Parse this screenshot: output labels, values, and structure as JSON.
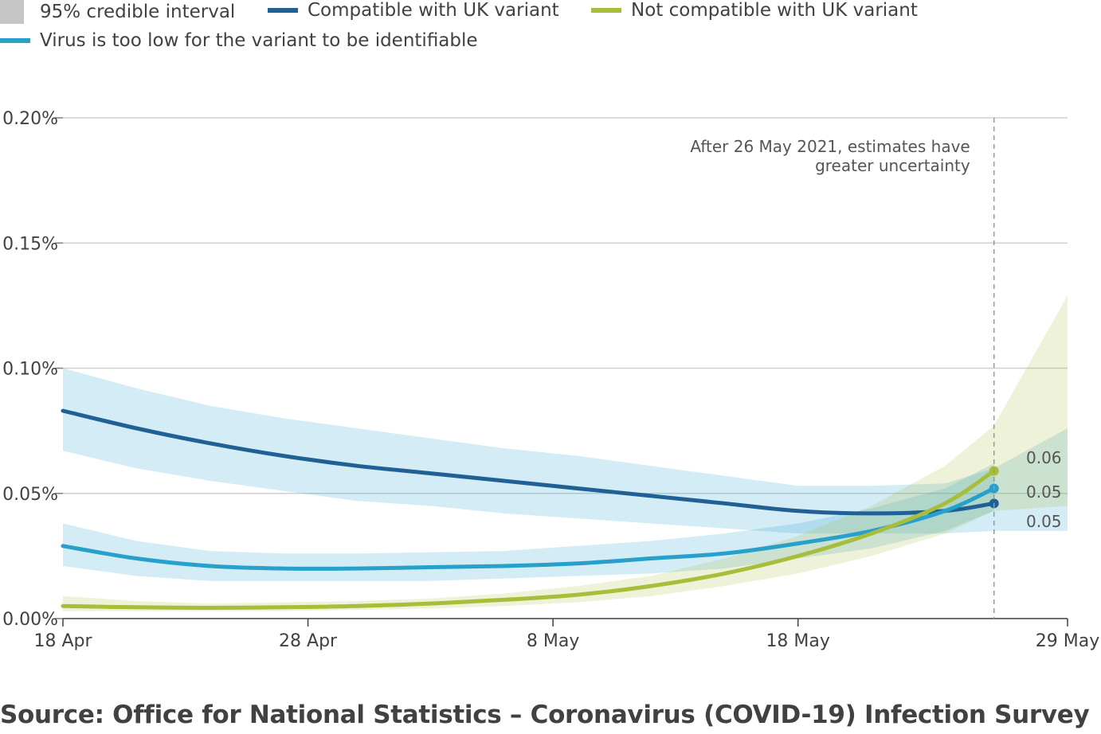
{
  "legend": [
    {
      "label": "95% credible interval",
      "kind": "box",
      "color": "#c6c6c6"
    },
    {
      "label": "Compatible with UK variant",
      "kind": "line",
      "color": "#206095"
    },
    {
      "label": "Not compatible with UK variant",
      "kind": "line",
      "color": "#a8bd3a"
    },
    {
      "label": "Virus is too low for the variant to be identifiable",
      "kind": "line",
      "color": "#27a0cc"
    }
  ],
  "source": "Source: Office for National Statistics – Coronavirus (COVID-19) Infection Survey",
  "chart_data": {
    "type": "line",
    "x_start": "2021-04-18",
    "x_end": "2021-05-29",
    "x_ticks": [
      {
        "date": "2021-04-18",
        "label": "18 Apr"
      },
      {
        "date": "2021-04-28",
        "label": "28 Apr"
      },
      {
        "date": "2021-05-08",
        "label": "8 May"
      },
      {
        "date": "2021-05-18",
        "label": "18 May"
      },
      {
        "date": "2021-05-29",
        "label": "29 May"
      }
    ],
    "ylim": [
      0,
      0.2
    ],
    "y_ticks": [
      {
        "value": 0.0,
        "label": "0.00%"
      },
      {
        "value": 0.05,
        "label": "0.05%"
      },
      {
        "value": 0.1,
        "label": "0.10%"
      },
      {
        "value": 0.15,
        "label": "0.15%"
      },
      {
        "value": 0.2,
        "label": "0.20%"
      }
    ],
    "grid": true,
    "annotation": {
      "date": "2021-05-26",
      "text_lines": [
        "After 26 May 2021, estimates have",
        "greater uncertainty"
      ]
    },
    "series": [
      {
        "name": "Compatible with UK variant",
        "color": "#206095",
        "band_color": "#27a0cc",
        "end_label": "0.05",
        "x": [
          "2021-04-18",
          "2021-04-21",
          "2021-04-24",
          "2021-04-27",
          "2021-04-30",
          "2021-05-03",
          "2021-05-06",
          "2021-05-09",
          "2021-05-12",
          "2021-05-15",
          "2021-05-18",
          "2021-05-21",
          "2021-05-24",
          "2021-05-26"
        ],
        "y": [
          0.083,
          0.076,
          0.07,
          0.065,
          0.061,
          0.058,
          0.055,
          0.052,
          0.049,
          0.046,
          0.043,
          0.042,
          0.043,
          0.046
        ],
        "lower": [
          0.067,
          0.06,
          0.055,
          0.051,
          0.047,
          0.045,
          0.042,
          0.04,
          0.038,
          0.036,
          0.034,
          0.034,
          0.034,
          0.035
        ],
        "upper": [
          0.1,
          0.092,
          0.085,
          0.08,
          0.076,
          0.072,
          0.068,
          0.065,
          0.061,
          0.057,
          0.053,
          0.053,
          0.054,
          0.06
        ]
      },
      {
        "name": "Virus is too low for the variant to be identifiable",
        "color": "#27a0cc",
        "band_color": "#27a0cc",
        "end_label": "0.05",
        "x": [
          "2021-04-18",
          "2021-04-21",
          "2021-04-24",
          "2021-04-27",
          "2021-04-30",
          "2021-05-03",
          "2021-05-06",
          "2021-05-09",
          "2021-05-12",
          "2021-05-15",
          "2021-05-18",
          "2021-05-21",
          "2021-05-24",
          "2021-05-26"
        ],
        "y": [
          0.029,
          0.024,
          0.021,
          0.02,
          0.02,
          0.0205,
          0.021,
          0.022,
          0.024,
          0.026,
          0.03,
          0.035,
          0.043,
          0.052
        ],
        "lower": [
          0.021,
          0.017,
          0.015,
          0.015,
          0.015,
          0.015,
          0.016,
          0.017,
          0.018,
          0.02,
          0.024,
          0.028,
          0.035,
          0.043
        ],
        "upper": [
          0.038,
          0.031,
          0.027,
          0.026,
          0.026,
          0.0265,
          0.027,
          0.029,
          0.031,
          0.034,
          0.038,
          0.044,
          0.052,
          0.062
        ]
      },
      {
        "name": "Not compatible with UK variant",
        "color": "#a8bd3a",
        "band_color": "#a8bd3a",
        "end_label": "0.06",
        "x": [
          "2021-04-18",
          "2021-04-21",
          "2021-04-24",
          "2021-04-27",
          "2021-04-30",
          "2021-05-03",
          "2021-05-06",
          "2021-05-09",
          "2021-05-12",
          "2021-05-15",
          "2021-05-18",
          "2021-05-21",
          "2021-05-24",
          "2021-05-26"
        ],
        "y": [
          0.005,
          0.0045,
          0.0043,
          0.0045,
          0.005,
          0.006,
          0.0075,
          0.0095,
          0.013,
          0.018,
          0.025,
          0.034,
          0.046,
          0.059
        ],
        "lower": [
          0.003,
          0.003,
          0.003,
          0.003,
          0.0035,
          0.004,
          0.005,
          0.0065,
          0.009,
          0.013,
          0.018,
          0.025,
          0.034,
          0.043
        ],
        "upper": [
          0.009,
          0.007,
          0.006,
          0.0065,
          0.007,
          0.008,
          0.01,
          0.013,
          0.017,
          0.024,
          0.033,
          0.045,
          0.061,
          0.077
        ]
      }
    ],
    "future_bands": [
      {
        "series": "Compatible with UK variant",
        "x": [
          "2021-05-26",
          "2021-05-29"
        ],
        "lower": [
          0.035,
          0.035
        ],
        "upper": [
          0.06,
          0.076
        ]
      },
      {
        "series": "Not compatible with UK variant",
        "x": [
          "2021-05-26",
          "2021-05-29"
        ],
        "lower": [
          0.043,
          0.045
        ],
        "upper": [
          0.077,
          0.129
        ]
      }
    ]
  }
}
